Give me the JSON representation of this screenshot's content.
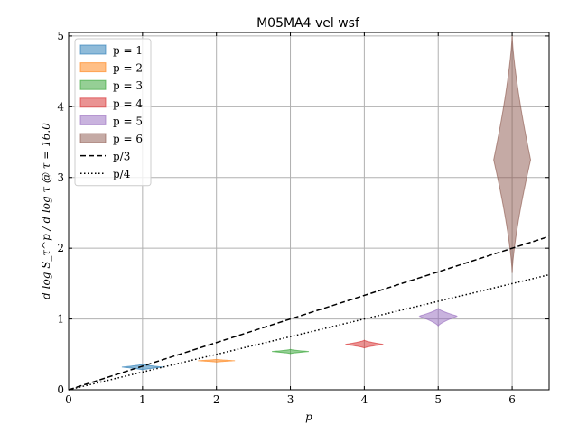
{
  "chart_data": {
    "type": "violin",
    "title": "M05MA4 vel wsf",
    "xlabel": "p",
    "ylabel": "d log S_τ^p / d log τ @ τ = 16.0",
    "xlim": [
      0,
      6.5
    ],
    "ylim": [
      0,
      5.05
    ],
    "xticks": [
      "0",
      "1",
      "2",
      "3",
      "4",
      "5",
      "6"
    ],
    "yticks": [
      "0",
      "1",
      "2",
      "3",
      "4",
      "5"
    ],
    "grid": true,
    "legend_placement": "upper-left",
    "series": [
      {
        "name": "p = 1",
        "p": 1,
        "color": "#1f77b4",
        "min": 0.28,
        "max": 0.36,
        "center": 0.32,
        "halfwidth": 0.28
      },
      {
        "name": "p = 2",
        "p": 2,
        "color": "#ff7f0e",
        "min": 0.39,
        "max": 0.43,
        "center": 0.41,
        "halfwidth": 0.25
      },
      {
        "name": "p = 3",
        "p": 3,
        "color": "#2ca02c",
        "min": 0.51,
        "max": 0.57,
        "center": 0.54,
        "halfwidth": 0.25
      },
      {
        "name": "p = 4",
        "p": 4,
        "color": "#d62728",
        "min": 0.59,
        "max": 0.7,
        "center": 0.64,
        "halfwidth": 0.26
      },
      {
        "name": "p = 5",
        "p": 5,
        "color": "#9467bd",
        "min": 0.9,
        "max": 1.15,
        "center": 1.04,
        "halfwidth": 0.26
      },
      {
        "name": "p = 6",
        "p": 6,
        "color": "#8c564b",
        "min": 1.65,
        "max": 5.02,
        "center": 3.25,
        "halfwidth": 0.25
      }
    ],
    "reference_lines": [
      {
        "name": "p/3",
        "slope": 0.3333,
        "style": "dashed"
      },
      {
        "name": "p/4",
        "slope": 0.25,
        "style": "dotted"
      }
    ]
  }
}
